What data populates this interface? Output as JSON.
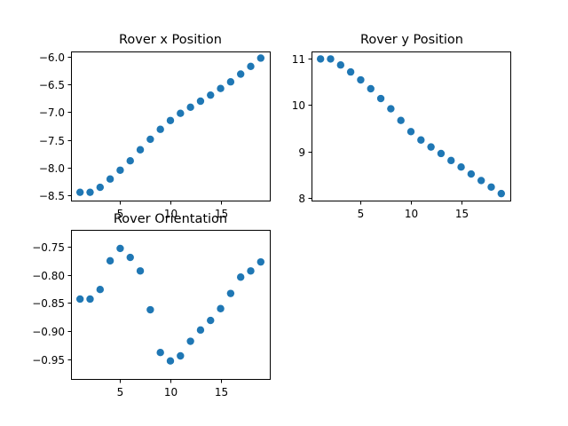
{
  "chart_data": [
    {
      "type": "scatter",
      "title": "Rover x Position",
      "xlabel": "",
      "ylabel": "",
      "xlim": [
        0.1,
        19.9
      ],
      "ylim": [
        -8.6,
        -5.9
      ],
      "xticks": [
        5,
        10,
        15
      ],
      "yticks": [
        -8.5,
        -8.0,
        -7.5,
        -7.0,
        -6.5,
        -6.0
      ],
      "ytick_labels": [
        "−8.5",
        "−8.0",
        "−7.5",
        "−7.0",
        "−6.5",
        "−6.0"
      ],
      "grid": false,
      "series": [
        {
          "color": "#1f77b4",
          "x": [
            1,
            2,
            3,
            4,
            5,
            6,
            7,
            8,
            9,
            10,
            11,
            12,
            13,
            14,
            15,
            16,
            17,
            18,
            19
          ],
          "y": [
            -8.45,
            -8.45,
            -8.36,
            -8.21,
            -8.05,
            -7.88,
            -7.68,
            -7.49,
            -7.31,
            -7.15,
            -7.02,
            -6.91,
            -6.8,
            -6.69,
            -6.57,
            -6.45,
            -6.31,
            -6.17,
            -6.02
          ]
        }
      ]
    },
    {
      "type": "scatter",
      "title": "Rover y Position",
      "xlabel": "",
      "ylabel": "",
      "xlim": [
        0.1,
        19.9
      ],
      "ylim": [
        7.95,
        11.15
      ],
      "xticks": [
        5,
        10,
        15
      ],
      "yticks": [
        8,
        9,
        10,
        11
      ],
      "ytick_labels": [
        "8",
        "9",
        "10",
        "11"
      ],
      "grid": false,
      "series": [
        {
          "color": "#1f77b4",
          "x": [
            1,
            2,
            3,
            4,
            5,
            6,
            7,
            8,
            9,
            10,
            11,
            12,
            13,
            14,
            15,
            16,
            17,
            18,
            19
          ],
          "y": [
            10.99,
            10.99,
            10.86,
            10.71,
            10.54,
            10.35,
            10.14,
            9.92,
            9.67,
            9.43,
            9.25,
            9.1,
            8.96,
            8.81,
            8.67,
            8.52,
            8.38,
            8.24,
            8.1
          ]
        }
      ]
    },
    {
      "type": "scatter",
      "title": "Rover Orientation",
      "xlabel": "",
      "ylabel": "",
      "xlim": [
        0.1,
        19.9
      ],
      "ylim": [
        -0.985,
        -0.72
      ],
      "xticks": [
        5,
        10,
        15
      ],
      "yticks": [
        -0.95,
        -0.9,
        -0.85,
        -0.8,
        -0.75
      ],
      "ytick_labels": [
        "−0.95",
        "−0.90",
        "−0.85",
        "−0.80",
        "−0.75"
      ],
      "grid": false,
      "series": [
        {
          "color": "#1f77b4",
          "x": [
            1,
            2,
            3,
            4,
            5,
            6,
            7,
            8,
            9,
            10,
            11,
            12,
            13,
            14,
            15,
            16,
            17,
            18,
            19
          ],
          "y": [
            -0.843,
            -0.843,
            -0.826,
            -0.775,
            -0.753,
            -0.769,
            -0.793,
            -0.862,
            -0.938,
            -0.953,
            -0.944,
            -0.918,
            -0.898,
            -0.881,
            -0.86,
            -0.833,
            -0.804,
            -0.793,
            -0.777
          ]
        }
      ]
    }
  ]
}
